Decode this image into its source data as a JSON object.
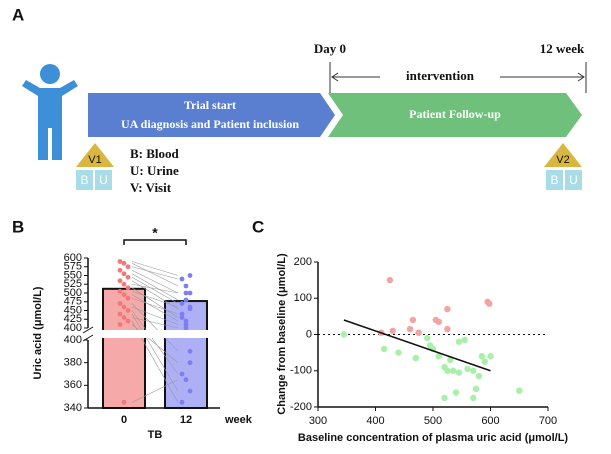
{
  "panel_labels": [
    "A",
    "B",
    "C"
  ],
  "timeline": {
    "day0": "Day 0",
    "end": "12 week",
    "intervention": "intervention",
    "phase1_line1": "Trial start",
    "phase1_line2": "UA diagnosis and Patient inclusion",
    "phase2": "Patient Follow-up",
    "visit1": "V1",
    "visit2": "V2",
    "blood": "B",
    "urine": "U",
    "legend": [
      "B: Blood",
      "U: Urine",
      "V: Visit"
    ]
  },
  "chart_data": [
    {
      "type": "bar",
      "categories": [
        "0",
        "12"
      ],
      "x_label": "TB",
      "x_unit": "week",
      "y_label": "Uric acid (μmol/L)",
      "values": [
        512,
        477
      ],
      "colors": [
        "#f6a9a9",
        "#aeb0f6"
      ],
      "point_colors": [
        "#f07a7a",
        "#7c7ef2"
      ],
      "significance": "*",
      "paired_points": [
        [
          590,
          550
        ],
        [
          585,
          520
        ],
        [
          575,
          540
        ],
        [
          565,
          500
        ],
        [
          555,
          480
        ],
        [
          545,
          470
        ],
        [
          535,
          455
        ],
        [
          525,
          500
        ],
        [
          515,
          430
        ],
        [
          505,
          460
        ],
        [
          495,
          420
        ],
        [
          485,
          440
        ],
        [
          470,
          390
        ],
        [
          460,
          410
        ],
        [
          450,
          370
        ],
        [
          440,
          355
        ],
        [
          430,
          400
        ],
        [
          420,
          345
        ],
        [
          410,
          380
        ],
        [
          345,
          365
        ]
      ],
      "axis_segments": [
        {
          "ylim": [
            400,
            600
          ],
          "yticks": [
            400,
            425,
            450,
            475,
            500,
            525,
            550,
            575,
            600
          ]
        },
        {
          "ylim": [
            340,
            400
          ],
          "yticks": [
            340,
            360,
            380,
            400
          ]
        }
      ]
    },
    {
      "type": "scatter",
      "x_label": "Baseline concentration of plasma uric acid (μmol/L)",
      "y_label": "Change from baseline (μmol/L)",
      "xlim": [
        300,
        700
      ],
      "xticks": [
        300,
        400,
        500,
        600,
        700
      ],
      "ylim": [
        -200,
        200
      ],
      "yticks": [
        -200,
        -100,
        0,
        100,
        200
      ],
      "zero_line": true,
      "series": [
        {
          "color": "#f4a3a3",
          "x": [
            425,
            410,
            430,
            465,
            460,
            475,
            505,
            510,
            525,
            525,
            595,
            598
          ],
          "y": [
            150,
            5,
            10,
            40,
            15,
            5,
            40,
            35,
            70,
            15,
            90,
            85
          ]
        },
        {
          "color": "#a8f0a8",
          "x": [
            345,
            415,
            440,
            470,
            490,
            495,
            500,
            510,
            520,
            525,
            530,
            535,
            540,
            545,
            560,
            570,
            575,
            580,
            585,
            590,
            600,
            650,
            570,
            520,
            545,
            555
          ],
          "y": [
            0,
            -40,
            -50,
            -65,
            -10,
            -30,
            -40,
            -60,
            -90,
            -100,
            -70,
            -100,
            -160,
            -105,
            -95,
            -100,
            -150,
            -115,
            -60,
            -75,
            -60,
            -155,
            -175,
            -175,
            -20,
            -15
          ]
        }
      ],
      "trend": {
        "color": "#111",
        "x": [
          345,
          600
        ],
        "y": [
          40,
          -100
        ]
      }
    }
  ]
}
